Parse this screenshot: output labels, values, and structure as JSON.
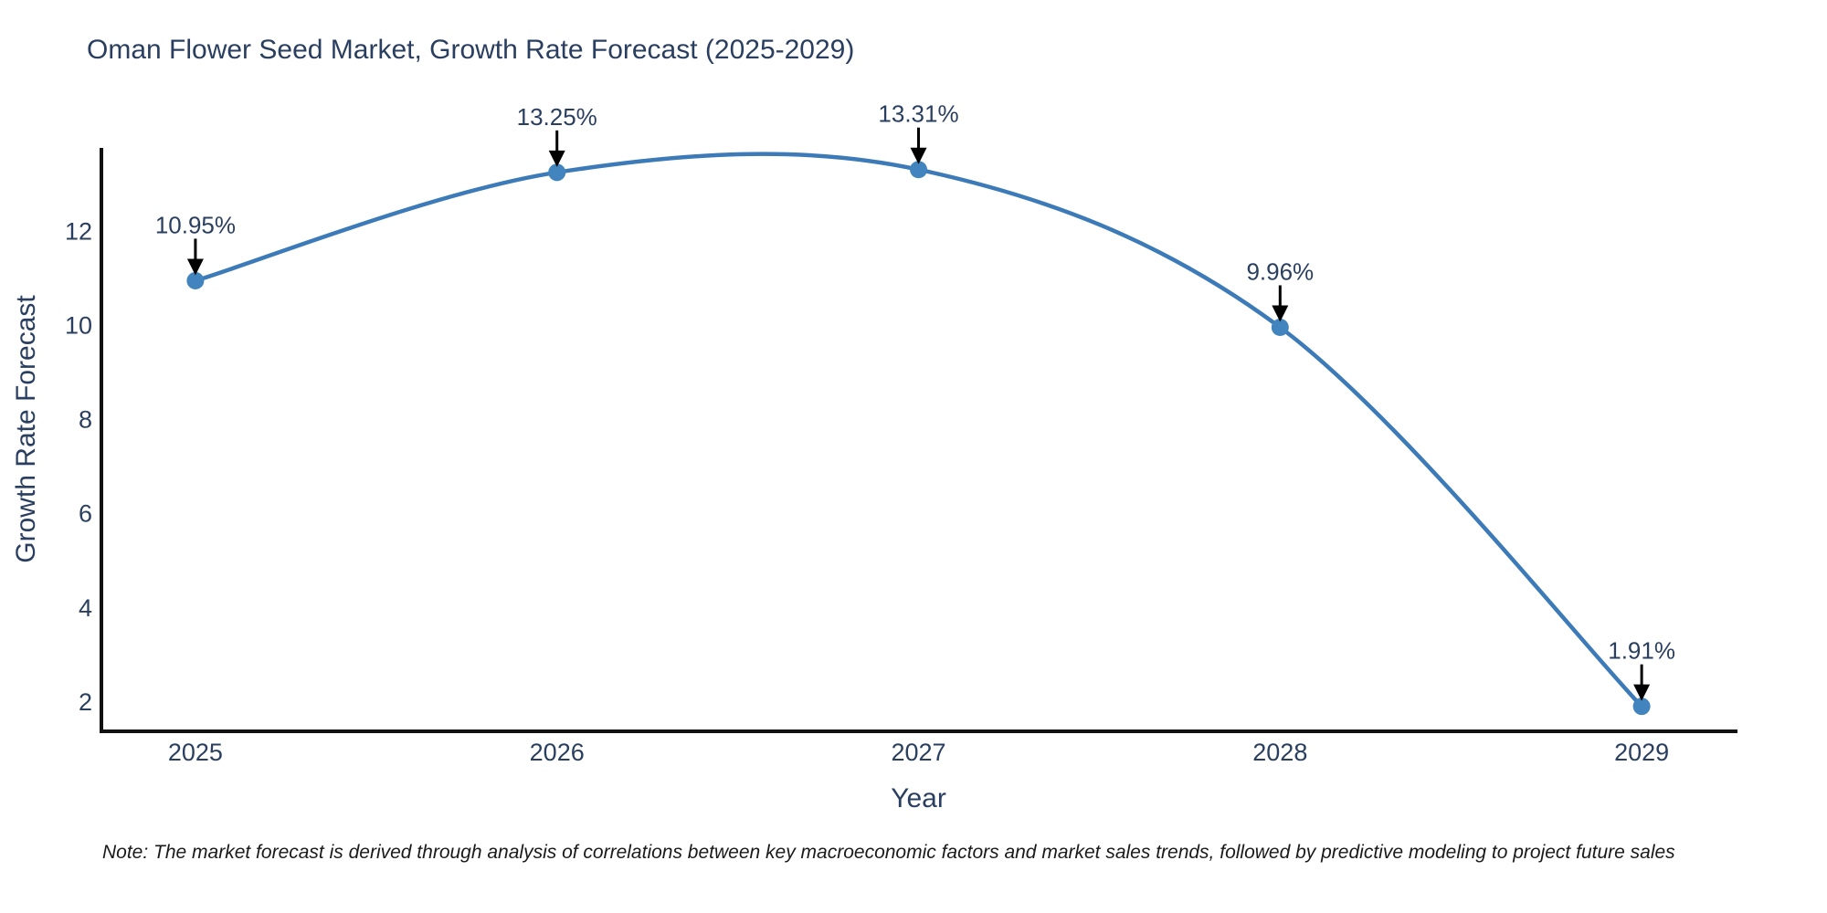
{
  "chart_data": {
    "type": "line",
    "title": "Oman Flower Seed Market, Growth Rate Forecast (2025-2029)",
    "xlabel": "Year",
    "ylabel": "Growth Rate Forecast",
    "x": [
      2025,
      2026,
      2027,
      2028,
      2029
    ],
    "y": [
      10.95,
      13.25,
      13.31,
      9.96,
      1.91
    ],
    "point_labels": [
      "10.95%",
      "13.25%",
      "13.31%",
      "9.96%",
      "1.91%"
    ],
    "x_tick_labels": [
      "2025",
      "2026",
      "2027",
      "2028",
      "2029"
    ],
    "x_tick_values": [
      2025,
      2026,
      2027,
      2028,
      2029
    ],
    "y_tick_labels": [
      "2",
      "4",
      "6",
      "8",
      "10",
      "12"
    ],
    "y_tick_values": [
      2,
      4,
      6,
      8,
      10,
      12
    ],
    "xlim": [
      2024.74,
      2029.265
    ],
    "ylim": [
      1.38,
      13.77
    ],
    "line_shape": "spline",
    "grid": false,
    "legend_position": "none",
    "colors": {
      "line": "#3c7ab8",
      "marker": "#4284bd",
      "axis": "#111111",
      "tick_label": "#2a3f5f",
      "title": "#2a3f5f",
      "annotation_text": "#2a3f5f",
      "annotation_arrow": "#000000"
    }
  },
  "note": {
    "text": "Note: The market forecast is derived through analysis of correlations between key macroeconomic factors and market sales trends, followed by predictive modeling to project future sales"
  }
}
